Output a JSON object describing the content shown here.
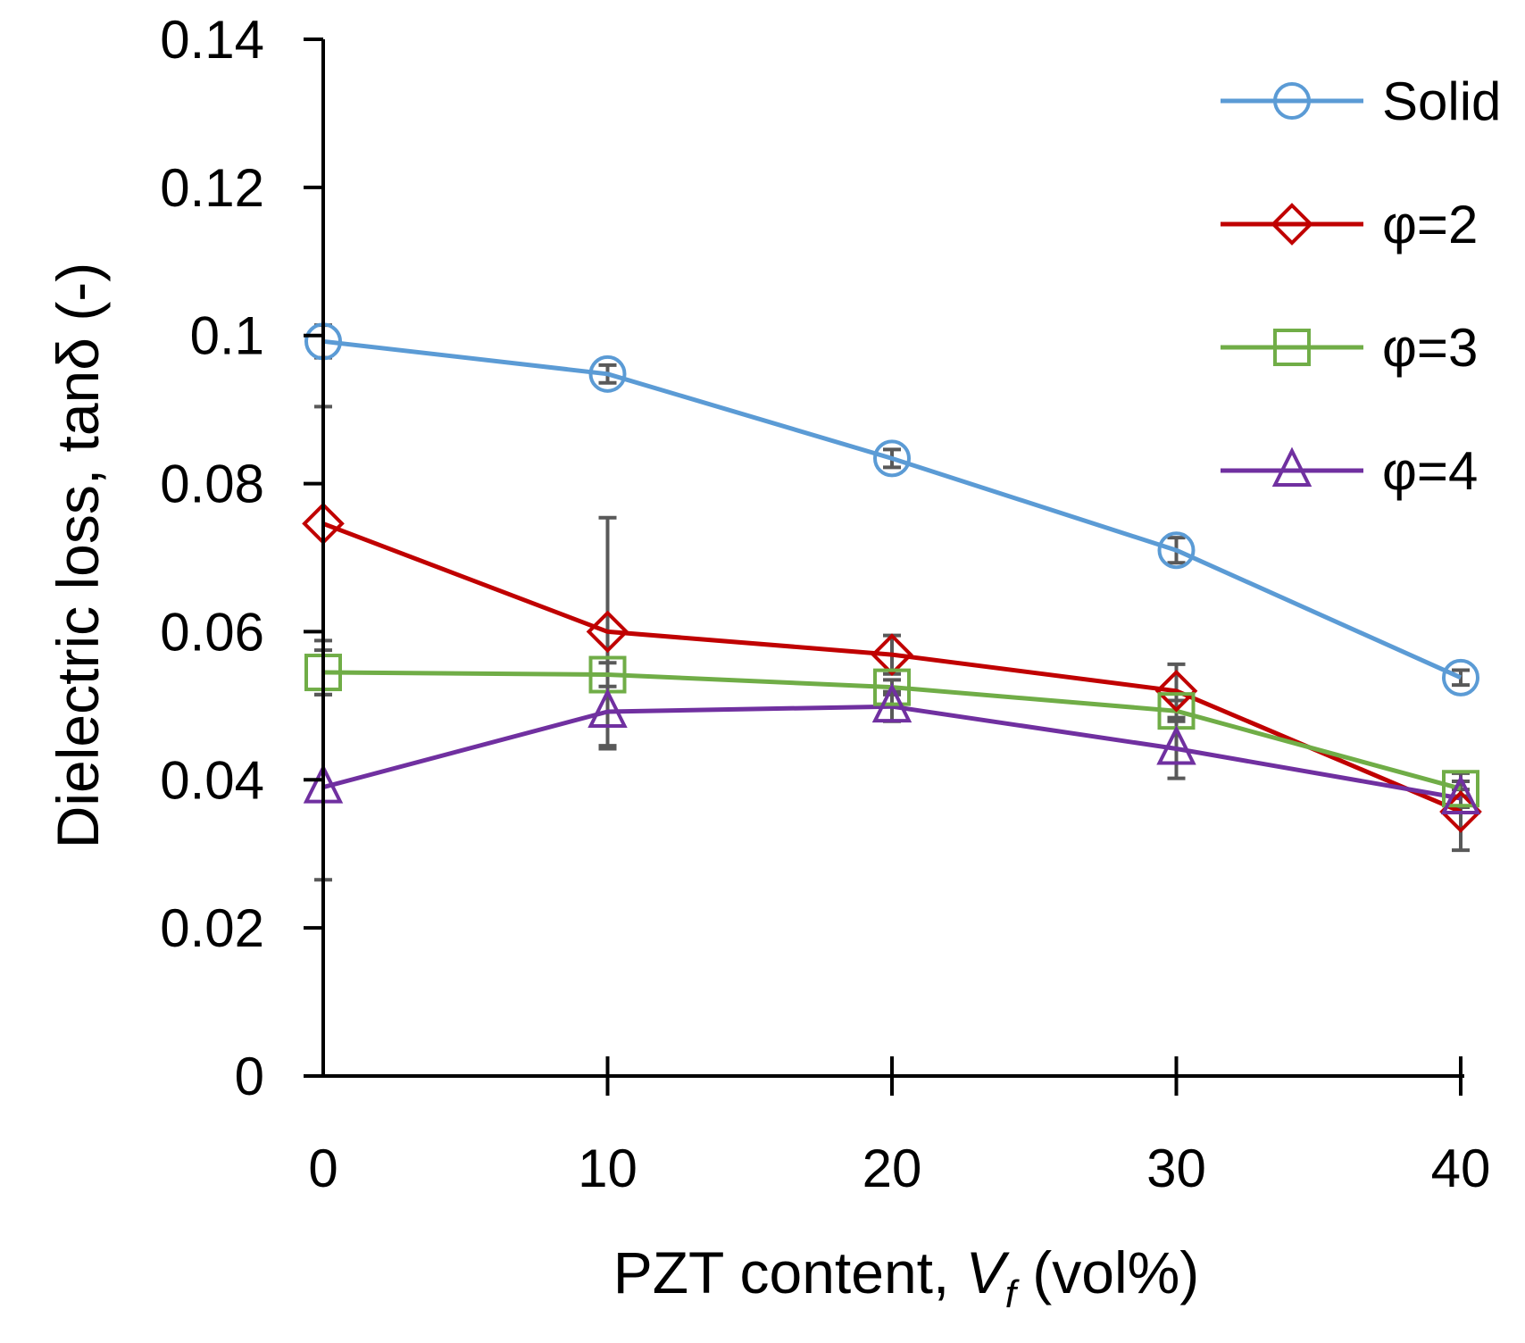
{
  "chart_data": {
    "type": "line",
    "title": "",
    "x": [
      0,
      10,
      20,
      30,
      40
    ],
    "xlim": [
      0,
      40
    ],
    "ylim": [
      0,
      0.14
    ],
    "x_ticks": [
      "0",
      "10",
      "20",
      "30",
      "40"
    ],
    "y_ticks": [
      "0",
      "0.02",
      "0.04",
      "0.06",
      "0.08",
      "0.1",
      "0.12",
      "0.14"
    ],
    "xlabel": {
      "prefix": "PZT content, ",
      "var": "V",
      "sub": "f",
      "suffix": " (vol%)"
    },
    "ylabel": "Dielectric loss, tanδ (-)",
    "grid": false,
    "legend_position": "top-right",
    "series": [
      {
        "name": "Solid",
        "color": "#5B9BD5",
        "marker": "circle",
        "values": [
          0.0992,
          0.0948,
          0.0834,
          0.071,
          0.0538
        ],
        "errors": [
          0.0022,
          0.0012,
          0.0012,
          0.0017,
          0.001
        ]
      },
      {
        "name": "φ=2",
        "color": "#C00000",
        "marker": "diamond",
        "values": [
          0.0746,
          0.06,
          0.0569,
          0.052,
          0.0357
        ],
        "errors": [
          0.0158,
          0.0154,
          0.0026,
          0.0036,
          0.0052
        ]
      },
      {
        "name": "φ=3",
        "color": "#70AD47",
        "marker": "square",
        "values": [
          0.0545,
          0.0542,
          0.0525,
          0.0493,
          0.0388
        ],
        "errors": [
          0.003,
          0.0016,
          0.001,
          0.0014,
          0.001
        ]
      },
      {
        "name": "φ=4",
        "color": "#7030A0",
        "marker": "triangle",
        "values": [
          0.039,
          0.0492,
          0.0499,
          0.0442,
          0.0375
        ],
        "errors": [
          0.0125,
          0.005,
          0.002,
          0.004,
          0.0012
        ]
      }
    ],
    "errorbar_color": "#595959"
  }
}
